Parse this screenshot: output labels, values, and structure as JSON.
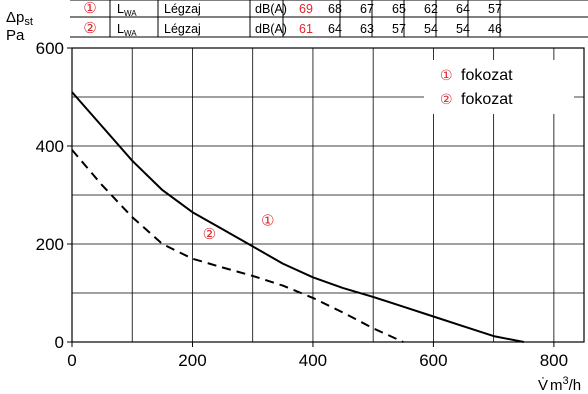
{
  "chart_data": {
    "type": "line",
    "xlabel_symbol": "V̇",
    "xlabel_unit": "m",
    "xlabel_unit_sup": "3",
    "xlabel_unit_tail": "/h",
    "ylabel_symbol": "Δp",
    "ylabel_sub": "st",
    "ylabel_unit": "Pa",
    "xlim": [
      0,
      850
    ],
    "ylim": [
      0,
      600
    ],
    "x_ticks": [
      "0",
      "200",
      "400",
      "600",
      "800"
    ],
    "y_ticks": [
      "0",
      "200",
      "400",
      "600"
    ],
    "x_tick_values": [
      0,
      200,
      400,
      600,
      800
    ],
    "y_tick_values": [
      0,
      200,
      400,
      600
    ],
    "grid": true,
    "legend": {
      "placement": "top-right",
      "entries": [
        {
          "marker": "①",
          "label": "fokozat"
        },
        {
          "marker": "②",
          "label": "fokozat"
        }
      ]
    },
    "series": [
      {
        "marker": "①",
        "line_style": "solid",
        "x": [
          0,
          50,
          100,
          150,
          200,
          250,
          300,
          350,
          400,
          450,
          500,
          550,
          600,
          650,
          700,
          750
        ],
        "y": [
          510,
          440,
          370,
          310,
          265,
          230,
          195,
          160,
          132,
          110,
          92,
          72,
          52,
          32,
          12,
          0
        ]
      },
      {
        "marker": "②",
        "line_style": "dashed",
        "x": [
          0,
          50,
          100,
          150,
          200,
          250,
          300,
          350,
          400,
          450,
          500,
          550
        ],
        "y": [
          392,
          320,
          255,
          200,
          170,
          152,
          135,
          115,
          90,
          60,
          28,
          0
        ]
      }
    ],
    "annotations": [
      {
        "text": "①",
        "x": 325,
        "y": 238
      },
      {
        "text": "②",
        "x": 228,
        "y": 210
      }
    ]
  },
  "table": {
    "rows": [
      {
        "marker": "①",
        "quantity": "L",
        "quantity_sub": "WA",
        "label": "Légzaj",
        "unit": "dB(A)",
        "values": [
          "69",
          "68",
          "67",
          "65",
          "62",
          "64",
          "57"
        ]
      },
      {
        "marker": "②",
        "quantity": "L",
        "quantity_sub": "WA",
        "label": "Légzaj",
        "unit": "dB(A)",
        "values": [
          "61",
          "64",
          "63",
          "57",
          "54",
          "54",
          "46"
        ]
      }
    ],
    "highlight_color": "#e0262d"
  },
  "colors": {
    "accent": "#e0262d",
    "line": "#000000",
    "grid": "#000000"
  }
}
